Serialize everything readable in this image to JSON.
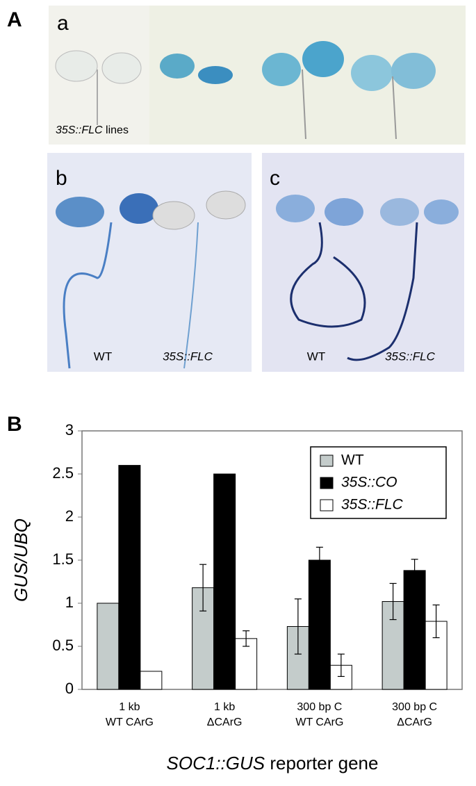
{
  "panel_a": {
    "label": "A",
    "sublabel": "a",
    "caption": [
      "35S::FLC",
      "lines"
    ]
  },
  "panel_b": {
    "label": "b",
    "labels": [
      "WT",
      "35S::FLC"
    ]
  },
  "panel_c": {
    "label": "c",
    "labels": [
      "WT",
      "35S::FLC"
    ]
  },
  "chart_data": {
    "type": "bar",
    "panel_label": "B",
    "ylabel": "GUS/UBQ",
    "xlabel": [
      "SOC1::GUS",
      "reporter gene"
    ],
    "categories": [
      [
        "1 kb",
        "WT CArG"
      ],
      [
        "1 kb",
        "ΔCArG"
      ],
      [
        "300 bp C",
        "WT CArG"
      ],
      [
        "300 bp C",
        "ΔCArG"
      ]
    ],
    "series": [
      {
        "name": "WT",
        "color": "#c4cccb",
        "values": [
          1.0,
          1.18,
          0.73,
          1.02
        ],
        "errors": [
          null,
          0.27,
          0.32,
          0.21
        ]
      },
      {
        "name": "35S::CO",
        "color": "#000000",
        "values": [
          2.6,
          2.5,
          1.5,
          1.38
        ],
        "errors": [
          null,
          null,
          0.15,
          0.13
        ]
      },
      {
        "name": "35S::FLC",
        "color": "#ffffff",
        "values": [
          0.21,
          0.59,
          0.28,
          0.79
        ],
        "errors": [
          null,
          0.09,
          0.13,
          0.19
        ]
      }
    ],
    "ylim": [
      0,
      3
    ],
    "yticks": [
      0,
      0.5,
      1,
      1.5,
      2,
      2.5,
      3
    ],
    "legend": "upper right"
  }
}
